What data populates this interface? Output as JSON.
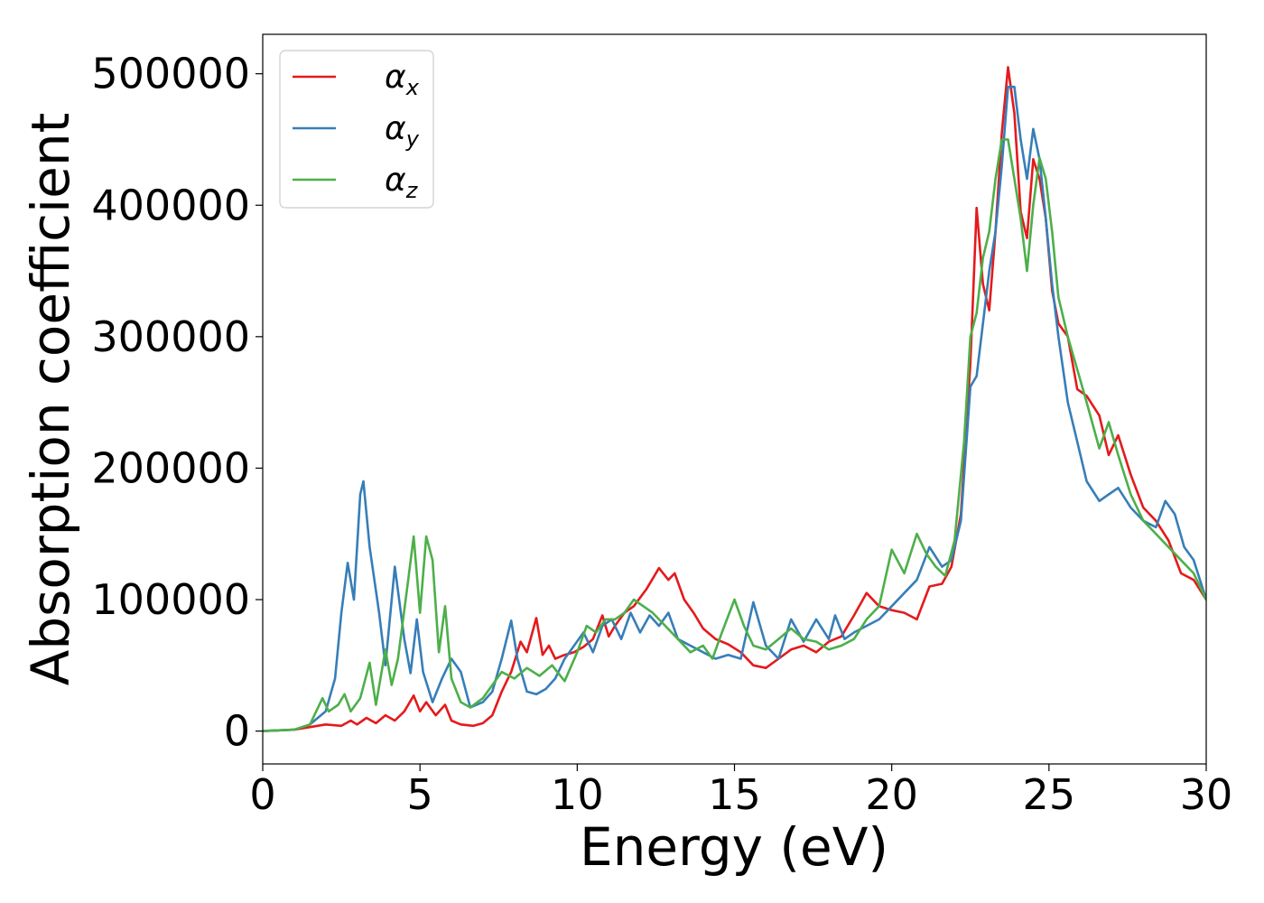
{
  "chart_data": {
    "type": "line",
    "title": "",
    "xlabel": "Energy (eV)",
    "ylabel": "Absorption coefficient",
    "xlim": [
      0,
      30
    ],
    "ylim": [
      -25000,
      530000
    ],
    "xticks": [
      0,
      5,
      10,
      15,
      20,
      25,
      30
    ],
    "xtick_labels": [
      "0",
      "5",
      "10",
      "15",
      "20",
      "25",
      "30"
    ],
    "yticks": [
      0,
      100000,
      200000,
      300000,
      400000,
      500000
    ],
    "ytick_labels": [
      "0",
      "100000",
      "200000",
      "300000",
      "400000",
      "500000"
    ],
    "grid": false,
    "legend_position": "top-left",
    "series": [
      {
        "name": "α_x",
        "legend_symbol": "α",
        "legend_subscript": "x",
        "color": "#e41a1c",
        "x": [
          0,
          1.0,
          1.5,
          2.0,
          2.5,
          2.8,
          3.0,
          3.3,
          3.6,
          3.9,
          4.2,
          4.5,
          4.8,
          5.0,
          5.2,
          5.5,
          5.8,
          6.0,
          6.3,
          6.7,
          7.0,
          7.3,
          7.6,
          7.9,
          8.2,
          8.4,
          8.7,
          8.9,
          9.1,
          9.3,
          9.6,
          9.9,
          10.2,
          10.5,
          10.8,
          11.0,
          11.2,
          11.5,
          11.8,
          12.2,
          12.6,
          12.9,
          13.1,
          13.4,
          13.7,
          14.0,
          14.4,
          14.8,
          15.2,
          15.6,
          16.0,
          16.4,
          16.8,
          17.2,
          17.6,
          18.0,
          18.4,
          18.8,
          19.2,
          19.6,
          20.0,
          20.4,
          20.8,
          21.2,
          21.6,
          21.9,
          22.2,
          22.5,
          22.7,
          22.9,
          23.1,
          23.3,
          23.5,
          23.7,
          23.9,
          24.1,
          24.3,
          24.5,
          24.7,
          24.9,
          25.1,
          25.3,
          25.6,
          25.9,
          26.2,
          26.6,
          26.9,
          27.2,
          27.6,
          28.0,
          28.4,
          28.8,
          29.2,
          29.6,
          30.0
        ],
        "values": [
          0,
          1000,
          3000,
          5000,
          4000,
          8000,
          5000,
          10000,
          6000,
          12000,
          8000,
          15000,
          27000,
          15000,
          22000,
          12000,
          20000,
          8000,
          5000,
          4000,
          6000,
          12000,
          30000,
          45000,
          68000,
          60000,
          86000,
          58000,
          65000,
          55000,
          58000,
          60000,
          64000,
          70000,
          88000,
          72000,
          80000,
          90000,
          95000,
          108000,
          124000,
          115000,
          120000,
          100000,
          90000,
          78000,
          70000,
          66000,
          60000,
          50000,
          48000,
          55000,
          62000,
          65000,
          60000,
          68000,
          72000,
          88000,
          105000,
          95000,
          92000,
          90000,
          85000,
          110000,
          112000,
          125000,
          165000,
          280000,
          398000,
          340000,
          320000,
          380000,
          455000,
          505000,
          470000,
          395000,
          375000,
          435000,
          420000,
          390000,
          335000,
          310000,
          300000,
          260000,
          255000,
          240000,
          210000,
          225000,
          195000,
          170000,
          160000,
          145000,
          120000,
          115000,
          100000
        ]
      },
      {
        "name": "α_y",
        "legend_symbol": "α",
        "legend_subscript": "y",
        "color": "#377eb8",
        "x": [
          0,
          1.0,
          1.5,
          2.0,
          2.3,
          2.5,
          2.7,
          2.9,
          3.1,
          3.2,
          3.4,
          3.7,
          3.9,
          4.2,
          4.5,
          4.7,
          4.9,
          5.1,
          5.4,
          5.7,
          6.0,
          6.3,
          6.6,
          7.0,
          7.3,
          7.6,
          7.9,
          8.1,
          8.4,
          8.7,
          9.0,
          9.3,
          9.6,
          9.9,
          10.2,
          10.5,
          10.8,
          11.1,
          11.4,
          11.7,
          12.0,
          12.3,
          12.6,
          12.9,
          13.2,
          13.6,
          14.0,
          14.4,
          14.8,
          15.2,
          15.6,
          16.0,
          16.4,
          16.8,
          17.2,
          17.6,
          18.0,
          18.2,
          18.5,
          18.8,
          19.2,
          19.6,
          20.0,
          20.4,
          20.8,
          21.2,
          21.6,
          21.9,
          22.2,
          22.5,
          22.7,
          22.9,
          23.1,
          23.3,
          23.5,
          23.7,
          23.9,
          24.1,
          24.3,
          24.5,
          24.7,
          24.9,
          25.1,
          25.3,
          25.6,
          25.9,
          26.2,
          26.6,
          26.9,
          27.2,
          27.6,
          28.0,
          28.4,
          28.7,
          29.0,
          29.3,
          29.6,
          30.0
        ],
        "values": [
          0,
          1000,
          5000,
          15000,
          40000,
          90000,
          128000,
          100000,
          180000,
          190000,
          140000,
          90000,
          50000,
          125000,
          70000,
          44000,
          85000,
          45000,
          22000,
          40000,
          55000,
          45000,
          18000,
          22000,
          30000,
          55000,
          84000,
          55000,
          30000,
          28000,
          32000,
          40000,
          55000,
          65000,
          75000,
          60000,
          80000,
          85000,
          70000,
          90000,
          75000,
          88000,
          80000,
          90000,
          70000,
          65000,
          60000,
          55000,
          58000,
          55000,
          98000,
          65000,
          55000,
          85000,
          68000,
          85000,
          70000,
          88000,
          70000,
          75000,
          80000,
          85000,
          95000,
          105000,
          115000,
          140000,
          125000,
          130000,
          160000,
          262000,
          270000,
          310000,
          350000,
          380000,
          430000,
          490000,
          490000,
          450000,
          420000,
          458000,
          435000,
          390000,
          340000,
          300000,
          250000,
          220000,
          190000,
          175000,
          180000,
          185000,
          170000,
          160000,
          155000,
          175000,
          165000,
          140000,
          130000,
          100000
        ]
      },
      {
        "name": "α_z",
        "legend_symbol": "α",
        "legend_subscript": "z",
        "color": "#4daf4a",
        "x": [
          0,
          1.0,
          1.5,
          1.9,
          2.1,
          2.4,
          2.6,
          2.8,
          3.1,
          3.4,
          3.6,
          3.9,
          4.1,
          4.3,
          4.6,
          4.8,
          5.0,
          5.2,
          5.4,
          5.6,
          5.8,
          6.0,
          6.3,
          6.6,
          7.0,
          7.3,
          7.6,
          8.0,
          8.4,
          8.8,
          9.2,
          9.6,
          10.0,
          10.3,
          10.6,
          10.9,
          11.2,
          11.5,
          11.8,
          12.1,
          12.4,
          12.8,
          13.2,
          13.6,
          14.0,
          14.3,
          14.6,
          15.0,
          15.3,
          15.6,
          16.0,
          16.4,
          16.8,
          17.2,
          17.6,
          18.0,
          18.4,
          18.8,
          19.2,
          19.6,
          20.0,
          20.4,
          20.8,
          21.1,
          21.4,
          21.7,
          22.0,
          22.3,
          22.5,
          22.7,
          22.9,
          23.1,
          23.3,
          23.5,
          23.7,
          23.9,
          24.1,
          24.3,
          24.5,
          24.7,
          24.9,
          25.1,
          25.3,
          25.6,
          25.9,
          26.2,
          26.6,
          26.9,
          27.2,
          27.6,
          28.0,
          28.4,
          28.8,
          29.2,
          29.6,
          30.0
        ],
        "values": [
          0,
          1000,
          5000,
          25000,
          15000,
          20000,
          28000,
          15000,
          25000,
          52000,
          20000,
          62000,
          35000,
          55000,
          110000,
          148000,
          90000,
          148000,
          130000,
          60000,
          95000,
          40000,
          22000,
          18000,
          25000,
          35000,
          45000,
          40000,
          48000,
          42000,
          50000,
          38000,
          60000,
          80000,
          75000,
          85000,
          85000,
          90000,
          100000,
          95000,
          90000,
          80000,
          70000,
          60000,
          65000,
          55000,
          75000,
          100000,
          80000,
          65000,
          62000,
          70000,
          78000,
          70000,
          68000,
          62000,
          65000,
          70000,
          85000,
          95000,
          138000,
          120000,
          150000,
          135000,
          125000,
          118000,
          145000,
          220000,
          300000,
          318000,
          360000,
          380000,
          420000,
          450000,
          450000,
          420000,
          390000,
          350000,
          400000,
          436000,
          420000,
          380000,
          330000,
          300000,
          275000,
          250000,
          215000,
          235000,
          210000,
          180000,
          160000,
          150000,
          140000,
          130000,
          120000,
          100000
        ]
      }
    ]
  }
}
